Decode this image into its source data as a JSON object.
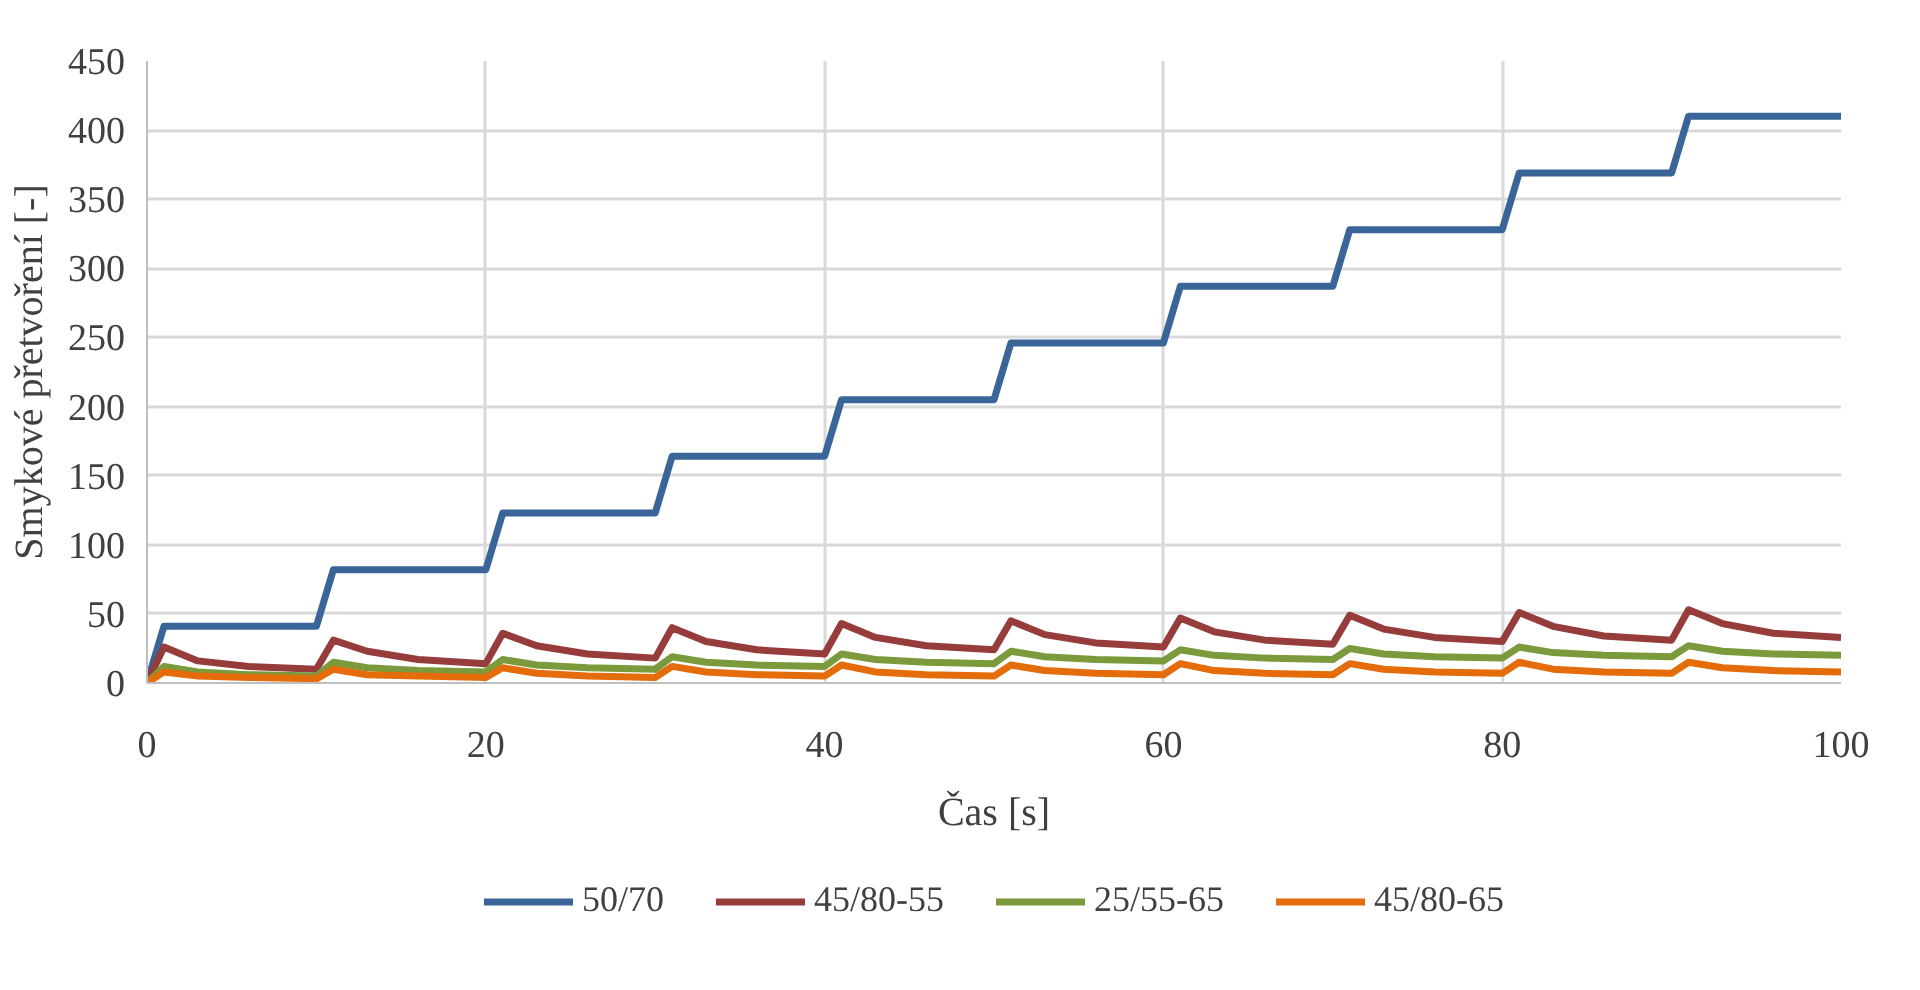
{
  "chart_data": {
    "type": "line",
    "xlabel": "Čas [s]",
    "ylabel": "Smykové přetvoření [-]",
    "xlim": [
      0,
      100
    ],
    "xticks": [
      0,
      20,
      40,
      60,
      80,
      100
    ],
    "ylim": [
      0,
      450
    ],
    "yticks": [
      0,
      50,
      100,
      150,
      200,
      250,
      300,
      350,
      400,
      450
    ],
    "grid": true,
    "legend": "bottom",
    "marker": "none",
    "line_style": "solid",
    "series": [
      {
        "name": "50/70",
        "color": "#3a6599",
        "x": [
          0,
          1,
          10,
          11,
          20,
          21,
          30,
          31,
          40,
          41,
          50,
          51,
          60,
          61,
          70,
          71,
          80,
          81,
          90,
          91,
          100
        ],
        "values": [
          0,
          41,
          41,
          82,
          82,
          123,
          123,
          164,
          164,
          205,
          205,
          246,
          246,
          287,
          287,
          328,
          328,
          369,
          369,
          410,
          410
        ]
      },
      {
        "name": "45/80-55",
        "color": "#963c3a",
        "x": [
          0,
          1,
          3,
          6,
          10,
          11,
          13,
          16,
          20,
          21,
          23,
          26,
          30,
          31,
          33,
          36,
          40,
          41,
          43,
          46,
          50,
          51,
          53,
          56,
          60,
          61,
          63,
          66,
          70,
          71,
          73,
          76,
          80,
          81,
          83,
          86,
          90,
          91,
          93,
          96,
          100
        ],
        "values": [
          0,
          26,
          16,
          12,
          10,
          31,
          23,
          17,
          14,
          36,
          27,
          21,
          18,
          40,
          30,
          24,
          21,
          43,
          33,
          27,
          24,
          45,
          35,
          29,
          26,
          47,
          37,
          31,
          28,
          49,
          39,
          33,
          30,
          51,
          41,
          34,
          31,
          53,
          43,
          36,
          33
        ]
      },
      {
        "name": "25/55-65",
        "color": "#7a9a3c",
        "x": [
          0,
          1,
          3,
          6,
          10,
          11,
          13,
          16,
          20,
          21,
          23,
          26,
          30,
          31,
          33,
          36,
          40,
          41,
          43,
          46,
          50,
          51,
          53,
          56,
          60,
          61,
          63,
          66,
          70,
          71,
          73,
          76,
          80,
          81,
          83,
          86,
          90,
          91,
          93,
          96,
          100
        ],
        "values": [
          0,
          12,
          8,
          6,
          5,
          15,
          11,
          9,
          8,
          17,
          13,
          11,
          10,
          19,
          15,
          13,
          12,
          21,
          17,
          15,
          14,
          23,
          19,
          17,
          16,
          24,
          20,
          18,
          17,
          25,
          21,
          19,
          18,
          26,
          22,
          20,
          19,
          27,
          23,
          21,
          20
        ]
      },
      {
        "name": "45/80-65",
        "color": "#e46c0a",
        "x": [
          0,
          1,
          3,
          6,
          10,
          11,
          13,
          16,
          20,
          21,
          23,
          26,
          30,
          31,
          33,
          36,
          40,
          41,
          43,
          46,
          50,
          51,
          53,
          56,
          60,
          61,
          63,
          66,
          70,
          71,
          73,
          76,
          80,
          81,
          83,
          86,
          90,
          91,
          93,
          96,
          100
        ],
        "values": [
          0,
          8,
          5,
          4,
          3,
          10,
          6,
          5,
          4,
          11,
          7,
          5,
          4,
          12,
          8,
          6,
          5,
          13,
          8,
          6,
          5,
          13,
          9,
          7,
          6,
          14,
          9,
          7,
          6,
          14,
          10,
          8,
          7,
          15,
          10,
          8,
          7,
          15,
          11,
          9,
          8
        ]
      }
    ]
  }
}
